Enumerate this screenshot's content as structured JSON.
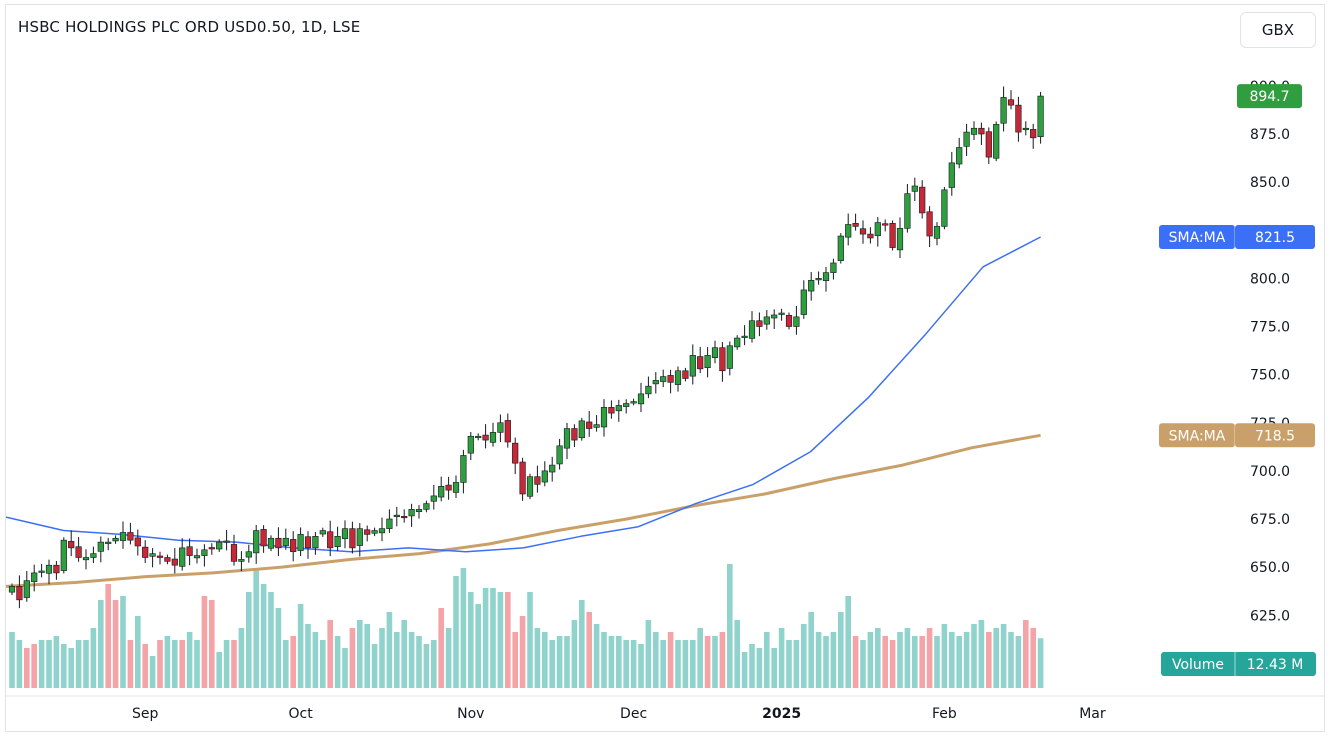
{
  "header": {
    "title": "HSBC HOLDINGS PLC ORD USD0.50, 1D, LSE",
    "currency": "GBX"
  },
  "colors": {
    "up": "#26a69a",
    "up_body": "#2e9e3e",
    "down": "#c62835",
    "vol_up": "#8fd3cc",
    "vol_down": "#f4a3a6",
    "sma_fast": "#3b6ff5",
    "sma_slow": "#c9a06a",
    "last_price": "#2e9e3e",
    "volume_tag": "#26a69a"
  },
  "chart_data": {
    "type": "candlestick",
    "title": "HSBC HOLDINGS PLC ORD USD0.50, 1D, LSE",
    "currency": "GBX",
    "ylim": [
      605,
      912
    ],
    "y_ticks": [
      "625.0",
      "650.0",
      "675.0",
      "700.0",
      "725.0",
      "750.0",
      "775.0",
      "800.0",
      "825.0",
      "850.0",
      "875.0",
      "900.0"
    ],
    "x_ticks": [
      {
        "label": "Sep",
        "index": 18
      },
      {
        "label": "Oct",
        "index": 39
      },
      {
        "label": "Nov",
        "index": 62
      },
      {
        "label": "Dec",
        "index": 84
      },
      {
        "label": "2025",
        "index": 104
      },
      {
        "label": "Feb",
        "index": 126
      },
      {
        "label": "Mar",
        "index": 146
      }
    ],
    "closes": [
      640,
      633,
      643,
      647,
      648,
      651,
      647,
      664,
      660,
      655,
      655,
      657,
      663,
      663,
      665,
      668,
      664,
      661,
      655,
      657,
      655,
      653,
      651,
      660,
      656,
      656,
      659,
      660,
      663,
      663,
      653,
      654,
      658,
      669,
      661,
      665,
      660,
      665,
      658,
      667,
      660,
      666,
      669,
      660,
      666,
      670,
      660,
      670,
      667,
      669,
      670,
      675,
      677,
      676,
      680,
      680,
      683,
      687,
      692,
      690,
      694,
      708,
      718,
      718,
      716,
      720,
      725,
      715,
      704,
      688,
      697,
      693,
      700,
      703,
      713,
      722,
      716,
      726,
      722,
      724,
      733,
      730,
      734,
      735,
      736,
      740,
      744,
      747,
      749,
      746,
      752,
      748,
      760,
      753,
      760,
      764,
      752,
      765,
      769,
      770,
      778,
      775,
      780,
      781,
      782,
      775,
      780,
      794,
      799,
      800,
      803,
      808,
      822,
      828,
      827,
      823,
      821,
      829,
      828,
      816,
      826,
      844,
      848,
      834,
      822,
      827,
      846,
      860,
      868,
      876,
      878,
      875,
      863,
      880,
      894,
      890,
      876,
      878,
      873,
      894.7
    ],
    "series": [
      {
        "name": "SMA:MA",
        "last_value": "821.5",
        "values_sampled": [
          676,
          669,
          667,
          664,
          663,
          660,
          658,
          660,
          658,
          660,
          666,
          671,
          683,
          693,
          710,
          738,
          771,
          806,
          821.5
        ]
      },
      {
        "name": "SMA:MA",
        "last_value": "718.5",
        "values_sampled": [
          640,
          642,
          645,
          647,
          650,
          654,
          657,
          662,
          669,
          675,
          682,
          688,
          696,
          703,
          712,
          718.5
        ]
      }
    ],
    "volume": {
      "name": "Volume",
      "last_value": "12.43 M",
      "values_m": [
        14,
        12,
        10,
        11,
        12,
        12,
        13,
        11,
        10,
        12,
        12,
        15,
        22,
        26,
        22,
        23,
        12,
        18,
        11,
        8,
        12,
        13,
        12,
        12,
        14,
        12,
        23,
        22,
        9,
        12,
        12,
        15,
        24,
        30,
        26,
        24,
        20,
        12,
        13,
        21,
        16,
        14,
        12,
        17,
        13,
        10,
        15,
        17,
        16,
        11,
        15,
        19,
        14,
        17,
        14,
        13,
        11,
        12,
        20,
        15,
        28,
        30,
        24,
        21,
        25,
        25,
        24,
        24,
        14,
        18,
        24,
        15,
        14,
        12,
        13,
        13,
        17,
        22,
        19,
        16,
        14,
        13,
        13,
        12,
        12,
        11,
        17,
        14,
        12,
        14,
        12,
        12,
        12,
        15,
        13,
        13,
        14,
        31,
        17,
        9,
        11,
        10,
        14,
        10,
        15,
        12,
        12,
        16,
        19,
        14,
        13,
        14,
        19,
        23,
        13,
        12,
        14,
        15,
        13,
        12,
        14,
        15,
        13,
        13,
        15,
        13,
        16,
        14,
        13,
        14,
        16,
        17,
        14,
        15,
        16,
        14,
        13,
        17,
        15,
        12.43
      ],
      "down_days": [
        2,
        3,
        13,
        14,
        16,
        18,
        20,
        23,
        26,
        27,
        30,
        38,
        43,
        46,
        58,
        67,
        68,
        69,
        78,
        89,
        94,
        96,
        114,
        118,
        119,
        123,
        124,
        132,
        137,
        138
      ]
    }
  }
}
